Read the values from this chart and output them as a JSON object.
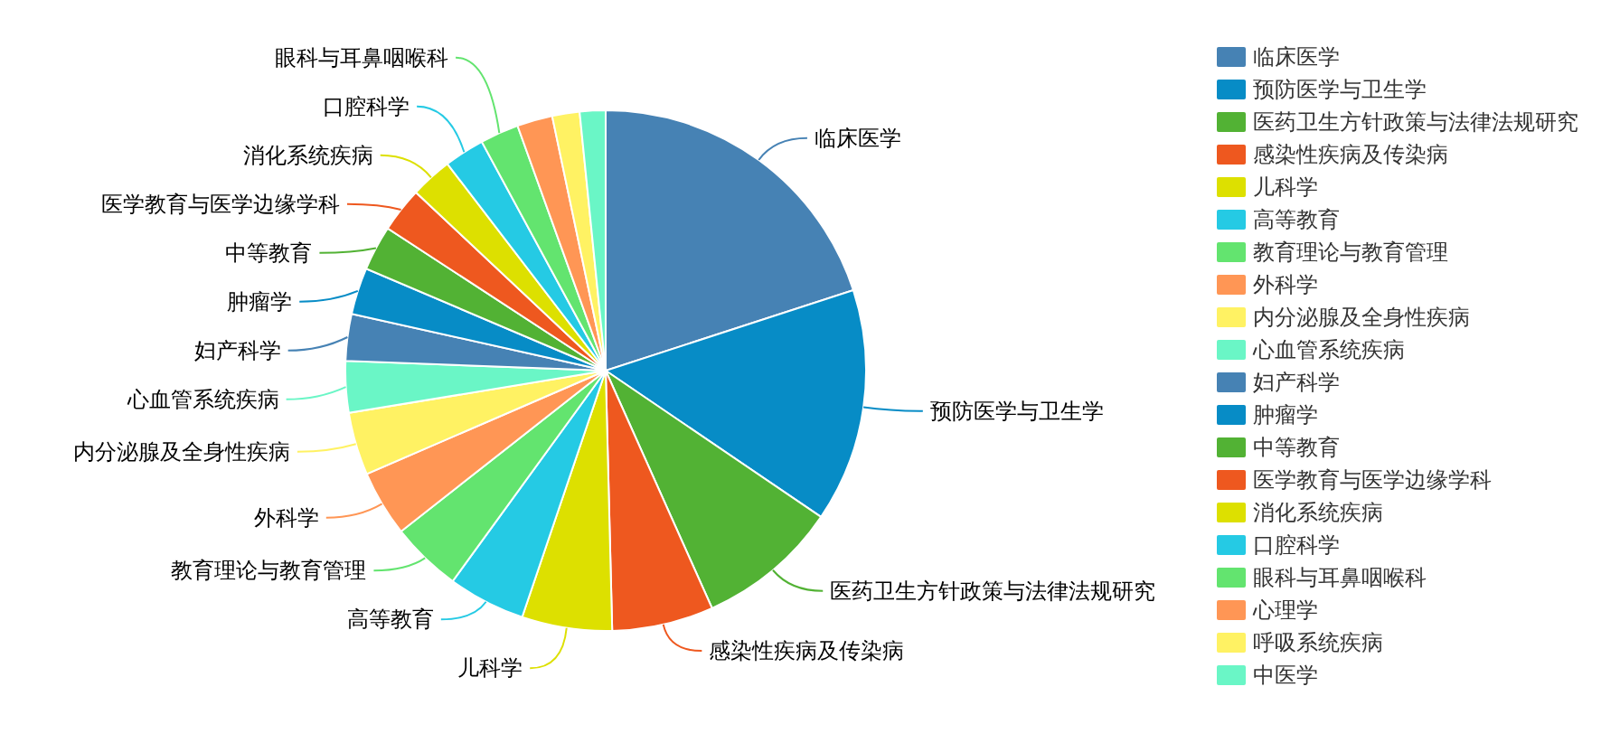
{
  "chart_data": {
    "type": "pie",
    "categories": [
      "临床医学",
      "预防医学与卫生学",
      "医药卫生方针政策与法律法规研究",
      "感染性疾病及传染病",
      "儿科学",
      "高等教育",
      "教育理论与教育管理",
      "外科学",
      "内分泌腺及全身性疾病",
      "心血管系统疾病",
      "妇产科学",
      "肿瘤学",
      "中等教育",
      "医学教育与医学边缘学科",
      "消化系统疾病",
      "口腔科学",
      "眼科与耳鼻咽喉科",
      "心理学",
      "呼吸系统疾病",
      "中医学"
    ],
    "values": [
      20.0,
      14.5,
      8.8,
      6.3,
      5.6,
      4.8,
      4.4,
      4.1,
      3.9,
      3.2,
      2.9,
      2.9,
      2.8,
      2.8,
      2.6,
      2.5,
      2.4,
      2.2,
      1.7,
      1.6
    ],
    "colors": [
      "#4682b4",
      "#078cc6",
      "#52b234",
      "#ee581f",
      "#dde000",
      "#25cae4",
      "#63e46f",
      "#ff9655",
      "#fff263",
      "#6af6c6",
      "#4682b4",
      "#078cc6",
      "#52b234",
      "#ee581f",
      "#dde000",
      "#25cae4",
      "#63e46f",
      "#ff9655",
      "#fff263",
      "#6af6c6"
    ],
    "legend": "right"
  }
}
